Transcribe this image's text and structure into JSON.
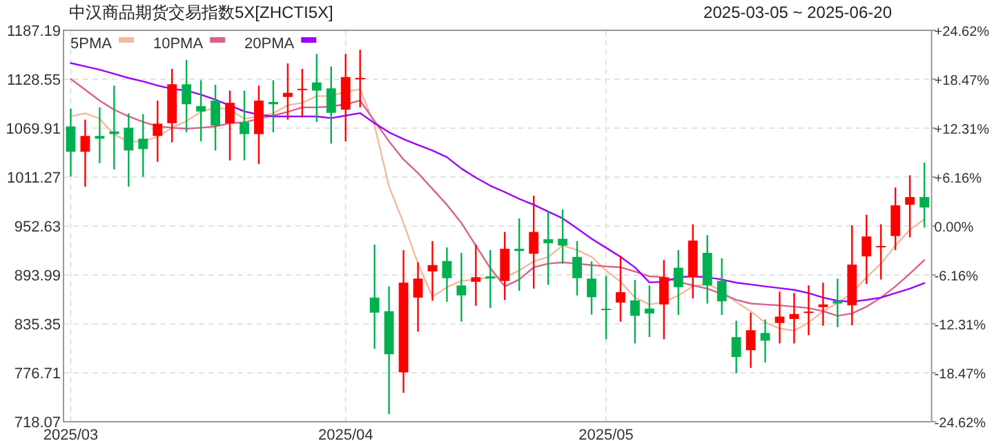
{
  "chart_data": {
    "type": "candlestick",
    "title": "中汉商品期货交易指数5X[ZHCTI5X]",
    "subtitle": "2025-03-05 ~ 2025-06-20",
    "categories": [
      "2025/03",
      null,
      null,
      null,
      null,
      null,
      null,
      null,
      null,
      null,
      null,
      null,
      null,
      null,
      null,
      null,
      null,
      null,
      null,
      "2025/04",
      null,
      null,
      null,
      null,
      null,
      null,
      null,
      null,
      null,
      null,
      null,
      null,
      null,
      null,
      null,
      null,
      null,
      "2025/05",
      null,
      null,
      null,
      null,
      null,
      null,
      null,
      null,
      null,
      null,
      null,
      null,
      null,
      null,
      null,
      null,
      null,
      null,
      null,
      null,
      null,
      null
    ],
    "ylim": [
      718.07,
      1187.19
    ],
    "yticks": [
      718.07,
      776.71,
      835.35,
      893.99,
      952.63,
      1011.27,
      1069.91,
      1128.55,
      1187.19
    ],
    "y2lim": [
      -24.62,
      24.62
    ],
    "y2ticks": [
      {
        "value": -24.62,
        "label": "-24.62%"
      },
      {
        "value": -18.47,
        "label": "-18.47%"
      },
      {
        "value": -12.31,
        "label": "-12.31%"
      },
      {
        "value": -6.16,
        "label": "-6.16%"
      },
      {
        "value": 0,
        "label": "0.00%"
      },
      {
        "value": 6.16,
        "label": "+6.16%"
      },
      {
        "value": 12.31,
        "label": "+12.31%"
      },
      {
        "value": 18.47,
        "label": "+18.47%"
      },
      {
        "value": 24.62,
        "label": "+24.62%"
      }
    ],
    "grid": true,
    "legend": "top left",
    "series": [
      {
        "type": "candlestick",
        "ohlc": [
          [
            1072,
            1093.2,
            1011.8,
            1041.6
          ],
          [
            1041.6,
            1080.1,
            999.8,
            1060.6
          ],
          [
            1060.6,
            1094.8,
            1028,
            1057.3
          ],
          [
            1066,
            1120.9,
            1020.4,
            1062.8
          ],
          [
            1070.4,
            1087.7,
            999.8,
            1043.2
          ],
          [
            1057.3,
            1086.7,
            1011.7,
            1044.9
          ],
          [
            1060.6,
            1103,
            1029.6,
            1075.3
          ],
          [
            1075.8,
            1141,
            1053,
            1122.5
          ],
          [
            1122.5,
            1151.8,
            1064.9,
            1098.6
          ],
          [
            1096.4,
            1127.4,
            1054.1,
            1089.9
          ],
          [
            1103,
            1122,
            1043.2,
            1073.1
          ],
          [
            1075.8,
            1114.9,
            1031.3,
            1100.3
          ],
          [
            1076.9,
            1114.9,
            1031.3,
            1062.8
          ],
          [
            1062.8,
            1120.9,
            1026.9,
            1103
          ],
          [
            1101.3,
            1127.4,
            1064.9,
            1098.6
          ],
          [
            1107.3,
            1147.5,
            1080.1,
            1112.2
          ],
          [
            1116.1,
            1141,
            1082.9,
            1117.1
          ],
          [
            1124.7,
            1158.9,
            1077.4,
            1114.9
          ],
          [
            1117.6,
            1143.7,
            1051.4,
            1088.3
          ],
          [
            1092.1,
            1158.9,
            1054.1,
            1131.2
          ],
          [
            1129.6,
            1163.8,
            1094.8,
            1130.1
          ],
          [
            866.8,
            930.3,
            805.4,
            848.8
          ],
          [
            850.5,
            880.3,
            727.2,
            798.9
          ],
          [
            777.2,
            923.8,
            752.7,
            884.7
          ],
          [
            866.8,
            909.1,
            826,
            889.6
          ],
          [
            898.2,
            934.6,
            863,
            905.8
          ],
          [
            910.7,
            927,
            861.9,
            890.1
          ],
          [
            881.4,
            920.5,
            838,
            869.5
          ],
          [
            885.8,
            930.3,
            857,
            891.2
          ],
          [
            892.3,
            923.8,
            854.3,
            889.6
          ],
          [
            886.8,
            945.5,
            864,
            925.4
          ],
          [
            925.4,
            961.8,
            874.9,
            922.7
          ],
          [
            919.4,
            989,
            877.6,
            945.5
          ],
          [
            936.8,
            971,
            882,
            931.9
          ],
          [
            937.3,
            972.6,
            907.5,
            929.2
          ],
          [
            915.6,
            934.6,
            869.5,
            890.1
          ],
          [
            889.6,
            910.2,
            846.6,
            867.3
          ],
          [
            853.5,
            892.8,
            816.8,
            852.6
          ],
          [
            860.8,
            917.2,
            838,
            873.3
          ],
          [
            863.5,
            887.9,
            811.9,
            845
          ],
          [
            853.7,
            881.4,
            819.5,
            847.8
          ],
          [
            858.6,
            911.8,
            816.8,
            891.2
          ],
          [
            902.6,
            923.8,
            846.1,
            879.3
          ],
          [
            891.2,
            954.7,
            865.7,
            935.2
          ],
          [
            920.5,
            941.7,
            859.7,
            881.4
          ],
          [
            886.9,
            914,
            846.1,
            862.4
          ],
          [
            819.5,
            839.1,
            776.1,
            795.6
          ],
          [
            803.8,
            848.8,
            782.6,
            827.7
          ],
          [
            824.4,
            840.7,
            789.1,
            815.2
          ],
          [
            836.4,
            873.8,
            811.9,
            844
          ],
          [
            841.2,
            872.2,
            811.9,
            847.2
          ],
          [
            849.6,
            881.4,
            821.7,
            850
          ],
          [
            855.4,
            884.7,
            833.1,
            858.6
          ],
          [
            862.9,
            889.6,
            831.5,
            859.7
          ],
          [
            857.5,
            953.6,
            833.6,
            906.4
          ],
          [
            916.2,
            966.1,
            883.1,
            940.1
          ],
          [
            928.2,
            954.7,
            888.5,
            928.7
          ],
          [
            940.6,
            998.7,
            923.8,
            977.5
          ],
          [
            978.1,
            1013.4,
            939,
            987.3
          ],
          [
            987.3,
            1028.6,
            950.9,
            974.8
          ]
        ],
        "colors": [
          "#00b050",
          "#ff0000",
          "#00b050",
          "#00b050",
          "#00b050",
          "#00b050",
          "#ff0000",
          "#ff0000",
          "#00b050",
          "#00b050",
          "#00b050",
          "#ff0000",
          "#00b050",
          "#ff0000",
          "#00b050",
          "#ff0000",
          "#ff0000",
          "#00b050",
          "#00b050",
          "#ff0000",
          "#ff0000",
          "#00b050",
          "#00b050",
          "#ff0000",
          "#ff0000",
          "#ff0000",
          "#00b050",
          "#00b050",
          "#ff0000",
          "#00b050",
          "#ff0000",
          "#00b050",
          "#ff0000",
          "#00b050",
          "#00b050",
          "#00b050",
          "#00b050",
          "#00b050",
          "#ff0000",
          "#00b050",
          "#00b050",
          "#ff0000",
          "#00b050",
          "#ff0000",
          "#00b050",
          "#00b050",
          "#00b050",
          "#ff0000",
          "#00b050",
          "#ff0000",
          "#ff0000",
          "#ff0000",
          "#ff0000",
          "#00b050",
          "#ff0000",
          "#ff0000",
          "#ff0000",
          "#ff0000",
          "#ff0000",
          "#00b050"
        ]
      },
      {
        "type": "line",
        "name": "5PMA",
        "color": "#f5b99c",
        "values": [
          1084,
          1087.7,
          1081.2,
          1062.2,
          1054.1,
          1054.1,
          1059.5,
          1070.4,
          1078.5,
          1089.4,
          1094.8,
          1092.1,
          1081.2,
          1084,
          1087.7,
          1097.5,
          1100.2,
          1108.4,
          1108.4,
          1113.8,
          1116.5,
          1073.1,
          999.8,
          956.3,
          907.5,
          867.8,
          879.2,
          886.8,
          888.5,
          891.2,
          891.2,
          899.3,
          910.2,
          915.6,
          929.2,
          923.8,
          915.6,
          899.3,
          885.8,
          866.8,
          858.6,
          861.3,
          869.5,
          880.3,
          883.1,
          874.9,
          861.3,
          850.5,
          836.9,
          829.8,
          827.1,
          836.9,
          850.5,
          860.3,
          872.2,
          891.2,
          907.5,
          929.2,
          948.2,
          960.7
        ]
      },
      {
        "type": "line",
        "name": "10PMA",
        "color": "#d8628a",
        "values": [
          1129,
          1116,
          1103,
          1092,
          1084,
          1077.4,
          1072,
          1070.4,
          1069.3,
          1070.4,
          1072,
          1075.8,
          1076.9,
          1081.2,
          1085,
          1089.4,
          1094.8,
          1094.8,
          1095.9,
          1098.6,
          1103,
          1078.5,
          1054.1,
          1032.4,
          1016.1,
          997.1,
          978.1,
          956.3,
          929.2,
          902,
          880.3,
          888.5,
          903.1,
          907.5,
          909.1,
          907.5,
          905.8,
          904.2,
          903.1,
          898,
          892.3,
          891.2,
          885.8,
          881.4,
          877.6,
          871.1,
          864.1,
          859.7,
          858.6,
          857.5,
          855.9,
          854.3,
          850.5,
          845,
          847.8,
          855.9,
          866.8,
          880.3,
          895.5,
          911.8
        ]
      },
      {
        "type": "line",
        "name": "20PMA",
        "color": "#9b00ff",
        "values": [
          1148,
          1144,
          1140,
          1135,
          1130,
          1126,
          1121,
          1117,
          1115,
          1110,
          1104,
          1097,
          1090,
          1086,
          1084,
          1084,
          1084,
          1084,
          1082,
          1085,
          1088,
          1075.8,
          1064.9,
          1056.8,
          1049.7,
          1043.2,
          1035.1,
          1021.5,
          1010.6,
          1000.9,
          993.3,
          985.1,
          978.1,
          969.9,
          961.8,
          949.8,
          937.3,
          926.5,
          915.6,
          903,
          885,
          885.8,
          891.2,
          892.3,
          891.2,
          888.5,
          884.7,
          882.5,
          880.3,
          878.2,
          876,
          872.2,
          866.8,
          863,
          861.9,
          864.1,
          866.8,
          872.2,
          877.6,
          884.1
        ]
      }
    ]
  }
}
